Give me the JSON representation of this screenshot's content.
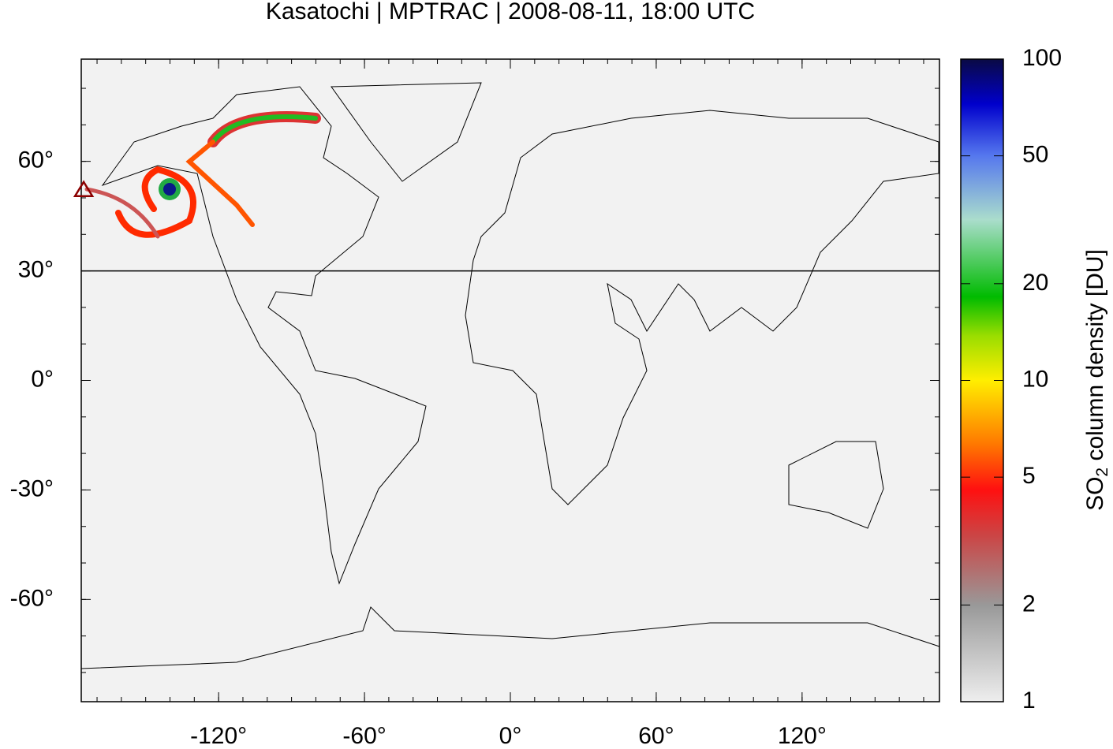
{
  "chart_data": {
    "type": "map",
    "title": "Kasatochi | MPTRAC | 2008-08-11, 18:00 UTC",
    "xlim": [
      -176.5,
      176.5
    ],
    "ylim": [
      -88,
      88
    ],
    "xticks": [
      {
        "value": -120,
        "label": "-120°"
      },
      {
        "value": -60,
        "label": "-60°"
      },
      {
        "value": 0,
        "label": "0°"
      },
      {
        "value": 60,
        "label": "60°"
      },
      {
        "value": 120,
        "label": "120°"
      }
    ],
    "yticks": [
      {
        "value": -60,
        "label": "-60°"
      },
      {
        "value": -30,
        "label": "-30°"
      },
      {
        "value": 0,
        "label": "0°"
      },
      {
        "value": 30,
        "label": "30°"
      },
      {
        "value": 60,
        "label": "60°"
      }
    ],
    "reference_lat": 30,
    "volcano": {
      "lon": -175.5,
      "lat": 52.2,
      "color": "#8b0000"
    },
    "colorbar": {
      "lim": [
        1,
        100
      ],
      "log": true,
      "ticks": [
        1,
        2,
        5,
        10,
        20,
        50,
        100
      ],
      "label_parts": [
        "SO",
        "2",
        " column density [DU]"
      ]
    }
  }
}
